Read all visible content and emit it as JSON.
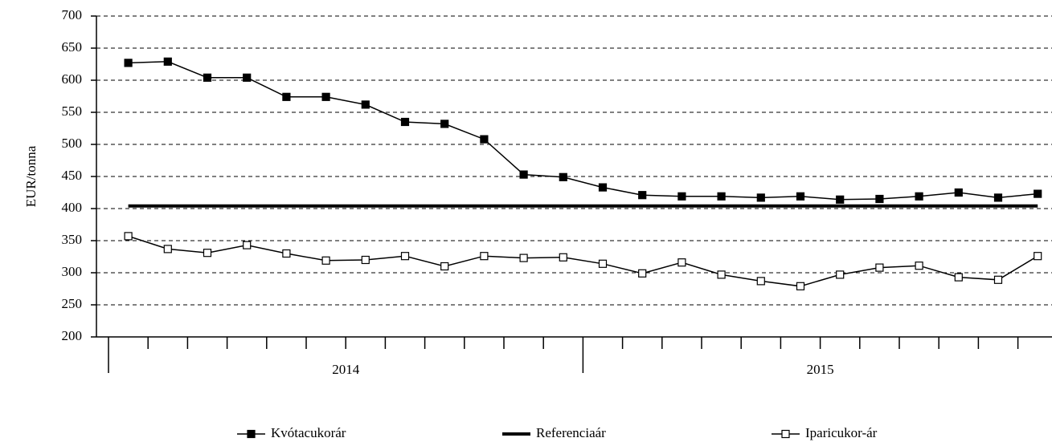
{
  "chart_data": {
    "type": "line",
    "y_label": "EUR/tonna",
    "categories": [
      null,
      null,
      null,
      null,
      null,
      null,
      null,
      null,
      null,
      null,
      null,
      null,
      null,
      null,
      null,
      null,
      null,
      null,
      null,
      null,
      null,
      null,
      null,
      null
    ],
    "groups": [
      "2014",
      "2015"
    ],
    "series": [
      {
        "name": "Kvótacukorár",
        "color": "#000000",
        "marker": "filled-square",
        "values": [
          627,
          629,
          604,
          604,
          574,
          574,
          562,
          535,
          532,
          508,
          453,
          449,
          433,
          421,
          419,
          419,
          417,
          419,
          414,
          415,
          419,
          425,
          417,
          423
        ]
      },
      {
        "name": "Referenciaár",
        "color": "#000000",
        "marker": "none",
        "values": [
          404,
          404,
          404,
          404,
          404,
          404,
          404,
          404,
          404,
          404,
          404,
          404,
          404,
          404,
          404,
          404,
          404,
          404,
          404,
          404,
          404,
          404,
          404,
          404
        ]
      },
      {
        "name": "Iparicukor-ár",
        "color": "#000000",
        "marker": "open-square",
        "values": [
          357,
          337,
          331,
          343,
          330,
          319,
          320,
          326,
          310,
          326,
          323,
          324,
          314,
          299,
          316,
          297,
          287,
          279,
          297,
          308,
          311,
          293,
          289,
          326
        ]
      }
    ],
    "ylim": [
      200,
      700
    ],
    "yticks": [
      200,
      250,
      300,
      350,
      400,
      450,
      500,
      550,
      600,
      650,
      700
    ],
    "grid": true
  }
}
